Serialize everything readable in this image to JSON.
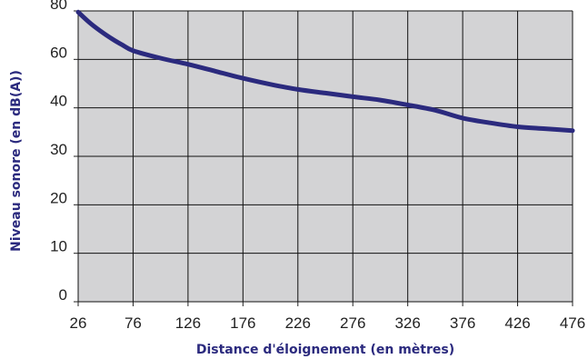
{
  "chart_data": {
    "type": "line",
    "xlabel": "Distance d'éloignement (en mètres)",
    "ylabel": "Niveau sonore (en dB(A))",
    "x_ticks": [
      "26",
      "76",
      "126",
      "176",
      "226",
      "276",
      "326",
      "376",
      "426",
      "476"
    ],
    "y_ticks": [
      "0",
      "10",
      "20",
      "30",
      "40",
      "60",
      "80"
    ],
    "xlim": [
      26,
      476
    ],
    "y_scale": "piecewise (tick labels evenly spaced: 0, 10, 20, 30, 40, 60, 80)",
    "grid": true,
    "series": [
      {
        "x": [
          26,
          36,
          46,
          56,
          66,
          76,
          101,
          126,
          151,
          176,
          201,
          226,
          251,
          276,
          301,
          326,
          351,
          376,
          401,
          426,
          451,
          476
        ],
        "y": [
          79.5,
          75.3,
          71.8,
          68.7,
          66.0,
          63.6,
          60.5,
          58.0,
          55.1,
          52.2,
          49.7,
          47.6,
          46.1,
          44.6,
          43.2,
          41.2,
          39.5,
          37.9,
          36.9,
          36.1,
          35.7,
          35.3
        ]
      }
    ],
    "colors": {
      "line": "#2b2a7e",
      "plot_background": "#d3d3d5",
      "grid": "#111111",
      "axis_title": "#2b2a7e"
    }
  }
}
